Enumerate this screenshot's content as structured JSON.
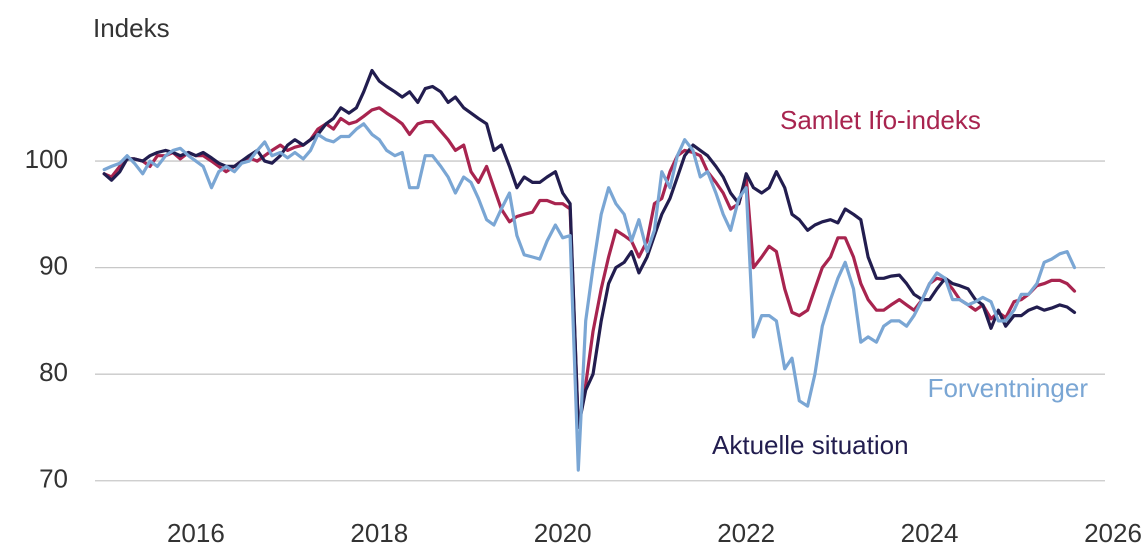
{
  "chart_data": {
    "type": "line",
    "y_axis_label": "Indeks",
    "x": [
      2015,
      2015.08,
      2015.17,
      2015.25,
      2015.33,
      2015.42,
      2015.5,
      2015.58,
      2015.67,
      2015.75,
      2015.83,
      2015.92,
      2016,
      2016.08,
      2016.17,
      2016.25,
      2016.33,
      2016.42,
      2016.5,
      2016.58,
      2016.67,
      2016.75,
      2016.83,
      2016.92,
      2017,
      2017.08,
      2017.17,
      2017.25,
      2017.33,
      2017.42,
      2017.5,
      2017.58,
      2017.67,
      2017.75,
      2017.83,
      2017.92,
      2018,
      2018.08,
      2018.17,
      2018.25,
      2018.33,
      2018.42,
      2018.5,
      2018.58,
      2018.67,
      2018.75,
      2018.83,
      2018.92,
      2019,
      2019.08,
      2019.17,
      2019.25,
      2019.33,
      2019.42,
      2019.5,
      2019.58,
      2019.67,
      2019.75,
      2019.83,
      2019.92,
      2020,
      2020.08,
      2020.17,
      2020.25,
      2020.33,
      2020.42,
      2020.5,
      2020.58,
      2020.67,
      2020.75,
      2020.83,
      2020.92,
      2021,
      2021.08,
      2021.17,
      2021.25,
      2021.33,
      2021.42,
      2021.5,
      2021.58,
      2021.67,
      2021.75,
      2021.83,
      2021.92,
      2022,
      2022.08,
      2022.17,
      2022.25,
      2022.33,
      2022.42,
      2022.5,
      2022.58,
      2022.67,
      2022.75,
      2022.83,
      2022.92,
      2023,
      2023.08,
      2023.17,
      2023.25,
      2023.33,
      2023.42,
      2023.5,
      2023.58,
      2023.67,
      2023.75,
      2023.83,
      2023.92,
      2024,
      2024.08,
      2024.17,
      2024.25,
      2024.33,
      2024.42,
      2024.5,
      2024.58,
      2024.67,
      2024.75,
      2024.83,
      2024.92,
      2025,
      2025.08,
      2025.17,
      2025.25,
      2025.33,
      2025.42,
      2025.5,
      2025.58
    ],
    "series": [
      {
        "name": "Aktuelle situation",
        "color": "#221d4f",
        "values": [
          98.8,
          98.2,
          99,
          100.2,
          100.2,
          100,
          100.5,
          100.8,
          101,
          100.8,
          100.5,
          100.8,
          100.5,
          100.8,
          100.3,
          99.8,
          99.5,
          99.5,
          100,
          100.5,
          101,
          100,
          99.8,
          100.5,
          101.5,
          102,
          101.5,
          102,
          102.5,
          103.5,
          104,
          105,
          104.5,
          105,
          106.5,
          108.5,
          107.5,
          107,
          106.5,
          106,
          106.5,
          105.5,
          106.8,
          107,
          106.5,
          105.5,
          106,
          105,
          104.5,
          104,
          103.5,
          101,
          101.5,
          99.5,
          97.5,
          98.5,
          98,
          98,
          98.5,
          99,
          97,
          96,
          75,
          78.5,
          80,
          85,
          88.5,
          90,
          90.5,
          91.5,
          89.5,
          91,
          93,
          95,
          96.5,
          98.5,
          100.5,
          101.5,
          101,
          100.5,
          99.5,
          98.5,
          97,
          96,
          98.8,
          97.5,
          97,
          97.5,
          99,
          97.5,
          95,
          94.5,
          93.5,
          94,
          94.3,
          94.5,
          94.2,
          95.5,
          95,
          94.5,
          91,
          89,
          89,
          89.2,
          89.3,
          88.5,
          87.5,
          87,
          87,
          88,
          89,
          88.5,
          88.3,
          88,
          87,
          86.5,
          84.3,
          86,
          84.5,
          85.5,
          85.5,
          86,
          86.3,
          86,
          86.2,
          86.5,
          86.3,
          85.8
        ]
      },
      {
        "name": "Samlet Ifo-indeks",
        "color": "#a8244f",
        "values": [
          98.8,
          98.5,
          99.5,
          100.2,
          100.2,
          100,
          99.5,
          100.5,
          100.5,
          100.8,
          100.2,
          100.8,
          100.5,
          100.5,
          100,
          99.5,
          99,
          99.5,
          100,
          100.3,
          100,
          100.5,
          101,
          101.5,
          101,
          101.3,
          101.5,
          102,
          103,
          103.5,
          103,
          104,
          103.5,
          103.7,
          104.2,
          104.8,
          105,
          104.5,
          104,
          103.5,
          102.5,
          103.5,
          103.7,
          103.7,
          102.8,
          102,
          101,
          101.5,
          99,
          98,
          99.5,
          97.5,
          95.5,
          94.3,
          94.8,
          95,
          95.2,
          96.3,
          96.3,
          96,
          96,
          95.5,
          75,
          79,
          84,
          88,
          91,
          93.5,
          93,
          92.5,
          91,
          92.5,
          96,
          96.5,
          99,
          100.5,
          101,
          100.8,
          100.5,
          99,
          98,
          97,
          95.5,
          96,
          98.5,
          90,
          91,
          92,
          91.5,
          88,
          85.8,
          85.5,
          86,
          88,
          90,
          91,
          92.8,
          92.8,
          91,
          88.5,
          87,
          86,
          86,
          86.5,
          87,
          86.5,
          86,
          87,
          88.5,
          89,
          88.8,
          88,
          87,
          86.5,
          86,
          86.5,
          85.2,
          85.8,
          85.3,
          86.8,
          87,
          87.5,
          88.3,
          88.5,
          88.8,
          88.8,
          88.5,
          87.8
        ]
      },
      {
        "name": "Forventninger",
        "color": "#7aa6d4",
        "values": [
          99.2,
          99.5,
          99.8,
          100.5,
          99.8,
          98.8,
          100,
          99.5,
          100.5,
          101,
          101.2,
          100.5,
          100,
          99.5,
          97.5,
          99,
          99.5,
          99,
          99.8,
          100,
          101,
          101.8,
          100.5,
          100.8,
          100.3,
          100.8,
          100.2,
          101,
          102.5,
          102,
          101.8,
          102.3,
          102.3,
          103,
          103.5,
          102.5,
          102,
          101,
          100.5,
          100.8,
          97.5,
          97.5,
          100.5,
          100.5,
          99.5,
          98.5,
          97,
          98.5,
          98,
          96.5,
          94.5,
          94,
          95.5,
          97,
          93,
          91.2,
          91,
          90.8,
          92.5,
          94,
          92.8,
          93,
          71,
          85,
          90,
          95,
          97.5,
          96,
          95,
          92.5,
          94.5,
          91.5,
          93.5,
          99,
          97.5,
          100.5,
          102,
          101,
          98.5,
          99,
          97,
          95,
          93.5,
          96.5,
          97.5,
          83.5,
          85.5,
          85.5,
          85,
          80.5,
          81.5,
          77.5,
          77,
          80,
          84.5,
          87,
          89,
          90.5,
          88,
          83,
          83.5,
          83,
          84.5,
          85,
          85,
          84.5,
          85.5,
          87,
          88.5,
          89.5,
          89,
          87,
          87,
          86.5,
          86.8,
          87.2,
          86.8,
          85,
          85,
          86,
          87.5,
          87.5,
          88.5,
          90.5,
          90.8,
          91.3,
          91.5,
          90
        ]
      }
    ],
    "xlim": [
      2014.9,
      2026
    ],
    "xticks": [
      2016,
      2018,
      2020,
      2022,
      2024,
      2026
    ],
    "ylim": [
      65,
      110
    ],
    "yticks": [
      70,
      80,
      90,
      100
    ],
    "grid": true
  }
}
